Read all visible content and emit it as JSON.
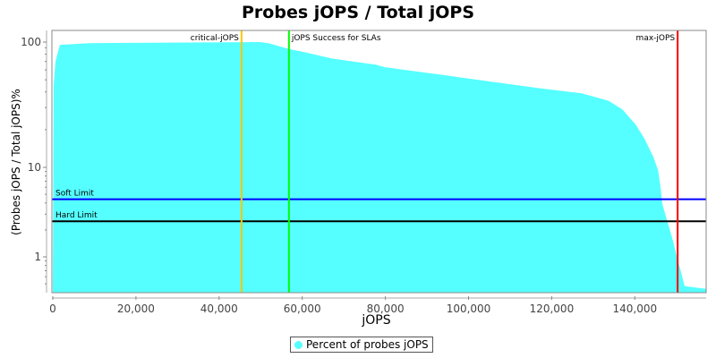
{
  "chart_data": {
    "type": "area",
    "title": "Probes jOPS / Total jOPS",
    "xlabel": "jOPS",
    "ylabel": "(Probes jOPS / Total jOPS)%",
    "yscale": "log",
    "xlim": [
      0,
      157200
    ],
    "ylim": [
      0.4,
      124
    ],
    "xticks": [
      0,
      20000,
      40000,
      60000,
      80000,
      100000,
      120000,
      140000
    ],
    "xtick_labels": [
      "0",
      "20,000",
      "40,000",
      "60,000",
      "80,000",
      "100,000",
      "120,000",
      "140,000"
    ],
    "yticks": [
      1,
      10,
      100
    ],
    "ytick_labels": [
      "1",
      "10",
      "100"
    ],
    "grid": false,
    "legend_position": "bottom",
    "fill_color": "#55ffff",
    "series": [
      {
        "name": "Percent of probes jOPS",
        "color": "#55ffff",
        "x": [
          0,
          200,
          650,
          1700,
          8800,
          49700,
          51900,
          56800,
          60500,
          67000,
          77700,
          79900,
          95000,
          108000,
          116500,
          127200,
          133700,
          137000,
          140200,
          142300,
          144500,
          145600,
          146200,
          146600,
          147700,
          149200,
          150300,
          150900,
          152000,
          157200
        ],
        "y": [
          0.4,
          45,
          70,
          95,
          98,
          100,
          98,
          88,
          83,
          74,
          66,
          63,
          54,
          47,
          43,
          39,
          34,
          29,
          22,
          17,
          12,
          9.3,
          5.9,
          3.9,
          2.6,
          1.5,
          0.93,
          0.74,
          0.47,
          0.44
        ]
      }
    ],
    "hlines": [
      {
        "label": "Soft Limit",
        "value": 4.4,
        "color": "#0000ff"
      },
      {
        "label": "Hard Limit",
        "value": 2.5,
        "color": "#000000"
      }
    ],
    "vlines": [
      {
        "label": "critical-jOPS",
        "value": 45400,
        "color": "#ffc800"
      },
      {
        "label": "jOPS Success for SLAs",
        "value": 56800,
        "color": "#00ff00"
      },
      {
        "label": "max-jOPS",
        "value": 150300,
        "color": "#ff0000"
      }
    ]
  }
}
